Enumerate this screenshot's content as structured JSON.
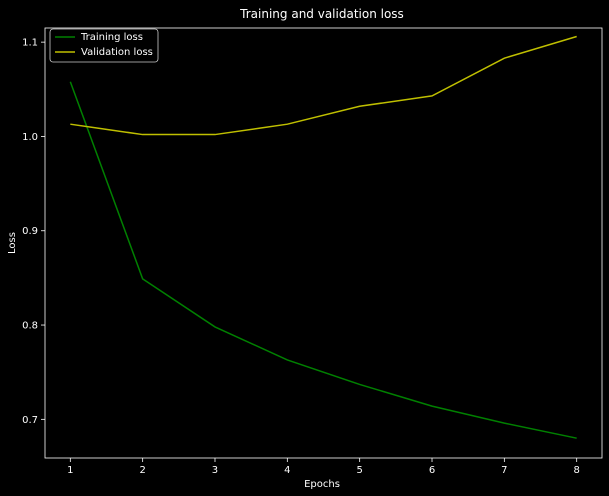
{
  "chart_data": {
    "type": "line",
    "title": "Training and validation loss",
    "xlabel": "Epochs",
    "ylabel": "Loss",
    "x": [
      1,
      2,
      3,
      4,
      5,
      6,
      7,
      8
    ],
    "xlim": [
      0.65,
      8.35
    ],
    "ylim": [
      0.659,
      1.115
    ],
    "xticks": [
      1,
      2,
      3,
      4,
      5,
      6,
      7,
      8
    ],
    "yticks": [
      0.7,
      0.8,
      0.9,
      1.0,
      1.1
    ],
    "ytick_labels": [
      "0.7",
      "0.8",
      "0.9",
      "1.0",
      "1.1"
    ],
    "grid": false,
    "legend_position": "top-left",
    "series": [
      {
        "name": "Training loss",
        "color": "#008000",
        "values": [
          1.058,
          0.849,
          0.798,
          0.763,
          0.737,
          0.714,
          0.696,
          0.68
        ]
      },
      {
        "name": "Validation loss",
        "color": "#bfbf00",
        "values": [
          1.013,
          1.002,
          1.002,
          1.013,
          1.032,
          1.043,
          1.083,
          1.106
        ]
      }
    ],
    "colors": {
      "background": "#000000",
      "axes": "#ffffff",
      "text": "#ffffff"
    }
  }
}
